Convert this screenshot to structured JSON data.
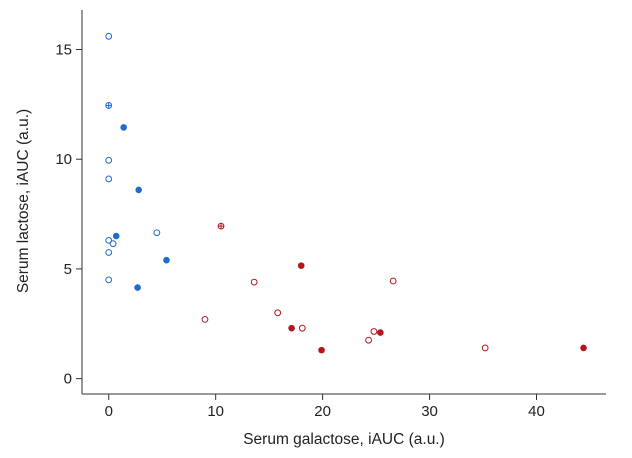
{
  "chart_data": {
    "type": "scatter",
    "title": "",
    "xlabel": "Serum galactose, iAUC (a.u.)",
    "ylabel": "Serum lactose, iAUC (a.u.)",
    "xlim": [
      -2.5,
      46.5
    ],
    "ylim": [
      -0.7,
      16.8
    ],
    "xticks": [
      0,
      10,
      20,
      30,
      40
    ],
    "yticks": [
      0,
      5,
      10,
      15
    ],
    "xtick_labels": [
      "0",
      "10",
      "20",
      "30",
      "40"
    ],
    "ytick_labels": [
      "0",
      "5",
      "10",
      "15"
    ],
    "grid": false,
    "legend": "none",
    "colors": {
      "blue": "#1f6ccf",
      "red": "#b0171f",
      "axis": "#333333"
    },
    "series": [
      {
        "color": "blue",
        "marker": "open-circle",
        "points": [
          [
            0,
            15.6
          ],
          [
            0,
            9.95
          ],
          [
            0,
            9.1
          ],
          [
            0,
            6.3
          ],
          [
            0.4,
            6.15
          ],
          [
            0,
            5.75
          ],
          [
            0,
            4.5
          ],
          [
            4.5,
            6.65
          ]
        ]
      },
      {
        "color": "blue",
        "marker": "filled-circle",
        "points": [
          [
            1.4,
            11.45
          ],
          [
            2.8,
            8.6
          ],
          [
            0.7,
            6.5
          ],
          [
            5.4,
            5.4
          ],
          [
            2.7,
            4.15
          ]
        ]
      },
      {
        "color": "blue",
        "marker": "crossed-circle",
        "points": [
          [
            0,
            12.45
          ]
        ]
      },
      {
        "color": "red",
        "marker": "open-circle",
        "points": [
          [
            13.6,
            4.4
          ],
          [
            26.6,
            4.45
          ],
          [
            9.0,
            2.7
          ],
          [
            15.8,
            3.0
          ],
          [
            18.1,
            2.3
          ],
          [
            24.8,
            2.15
          ],
          [
            24.3,
            1.75
          ],
          [
            35.2,
            1.4
          ]
        ]
      },
      {
        "color": "red",
        "marker": "filled-circle",
        "points": [
          [
            18.0,
            5.15
          ],
          [
            17.1,
            2.3
          ],
          [
            25.4,
            2.1
          ],
          [
            19.9,
            1.3
          ],
          [
            44.4,
            1.4
          ]
        ]
      },
      {
        "color": "red",
        "marker": "crossed-circle",
        "points": [
          [
            10.5,
            6.95
          ]
        ]
      }
    ]
  }
}
